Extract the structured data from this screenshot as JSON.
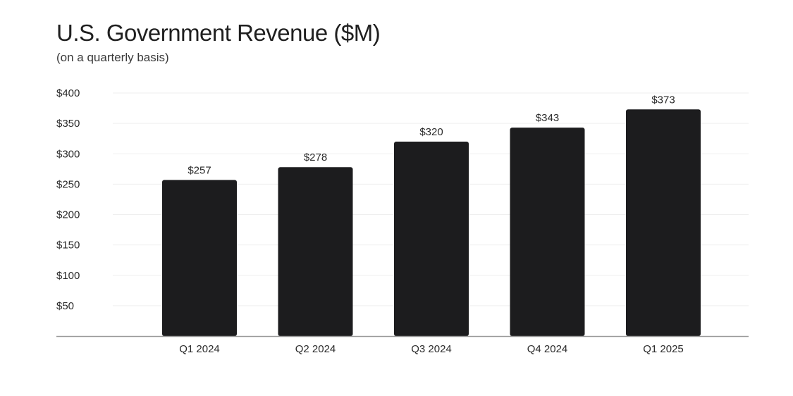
{
  "chart_data": {
    "type": "bar",
    "title": "U.S. Government Revenue ($M)",
    "subtitle": "(on a quarterly basis)",
    "categories": [
      "Q1 2024",
      "Q2 2024",
      "Q3 2024",
      "Q4 2024",
      "Q1 2025"
    ],
    "values": [
      257,
      278,
      320,
      343,
      373
    ],
    "data_labels": [
      "$257",
      "$278",
      "$320",
      "$343",
      "$373"
    ],
    "ylim": [
      0,
      400
    ],
    "y_ticks": [
      50,
      100,
      150,
      200,
      250,
      300,
      350,
      400
    ],
    "y_tick_labels": [
      "$50",
      "$100",
      "$150",
      "$200",
      "$250",
      "$300",
      "$350",
      "$400"
    ],
    "xlabel": "",
    "ylabel": "",
    "grid": true,
    "legend": "none",
    "colors": {
      "bar": "#1c1c1e",
      "grid": "#efefef",
      "axis": "#9a9a9a",
      "text": "#2a2a2a"
    }
  }
}
